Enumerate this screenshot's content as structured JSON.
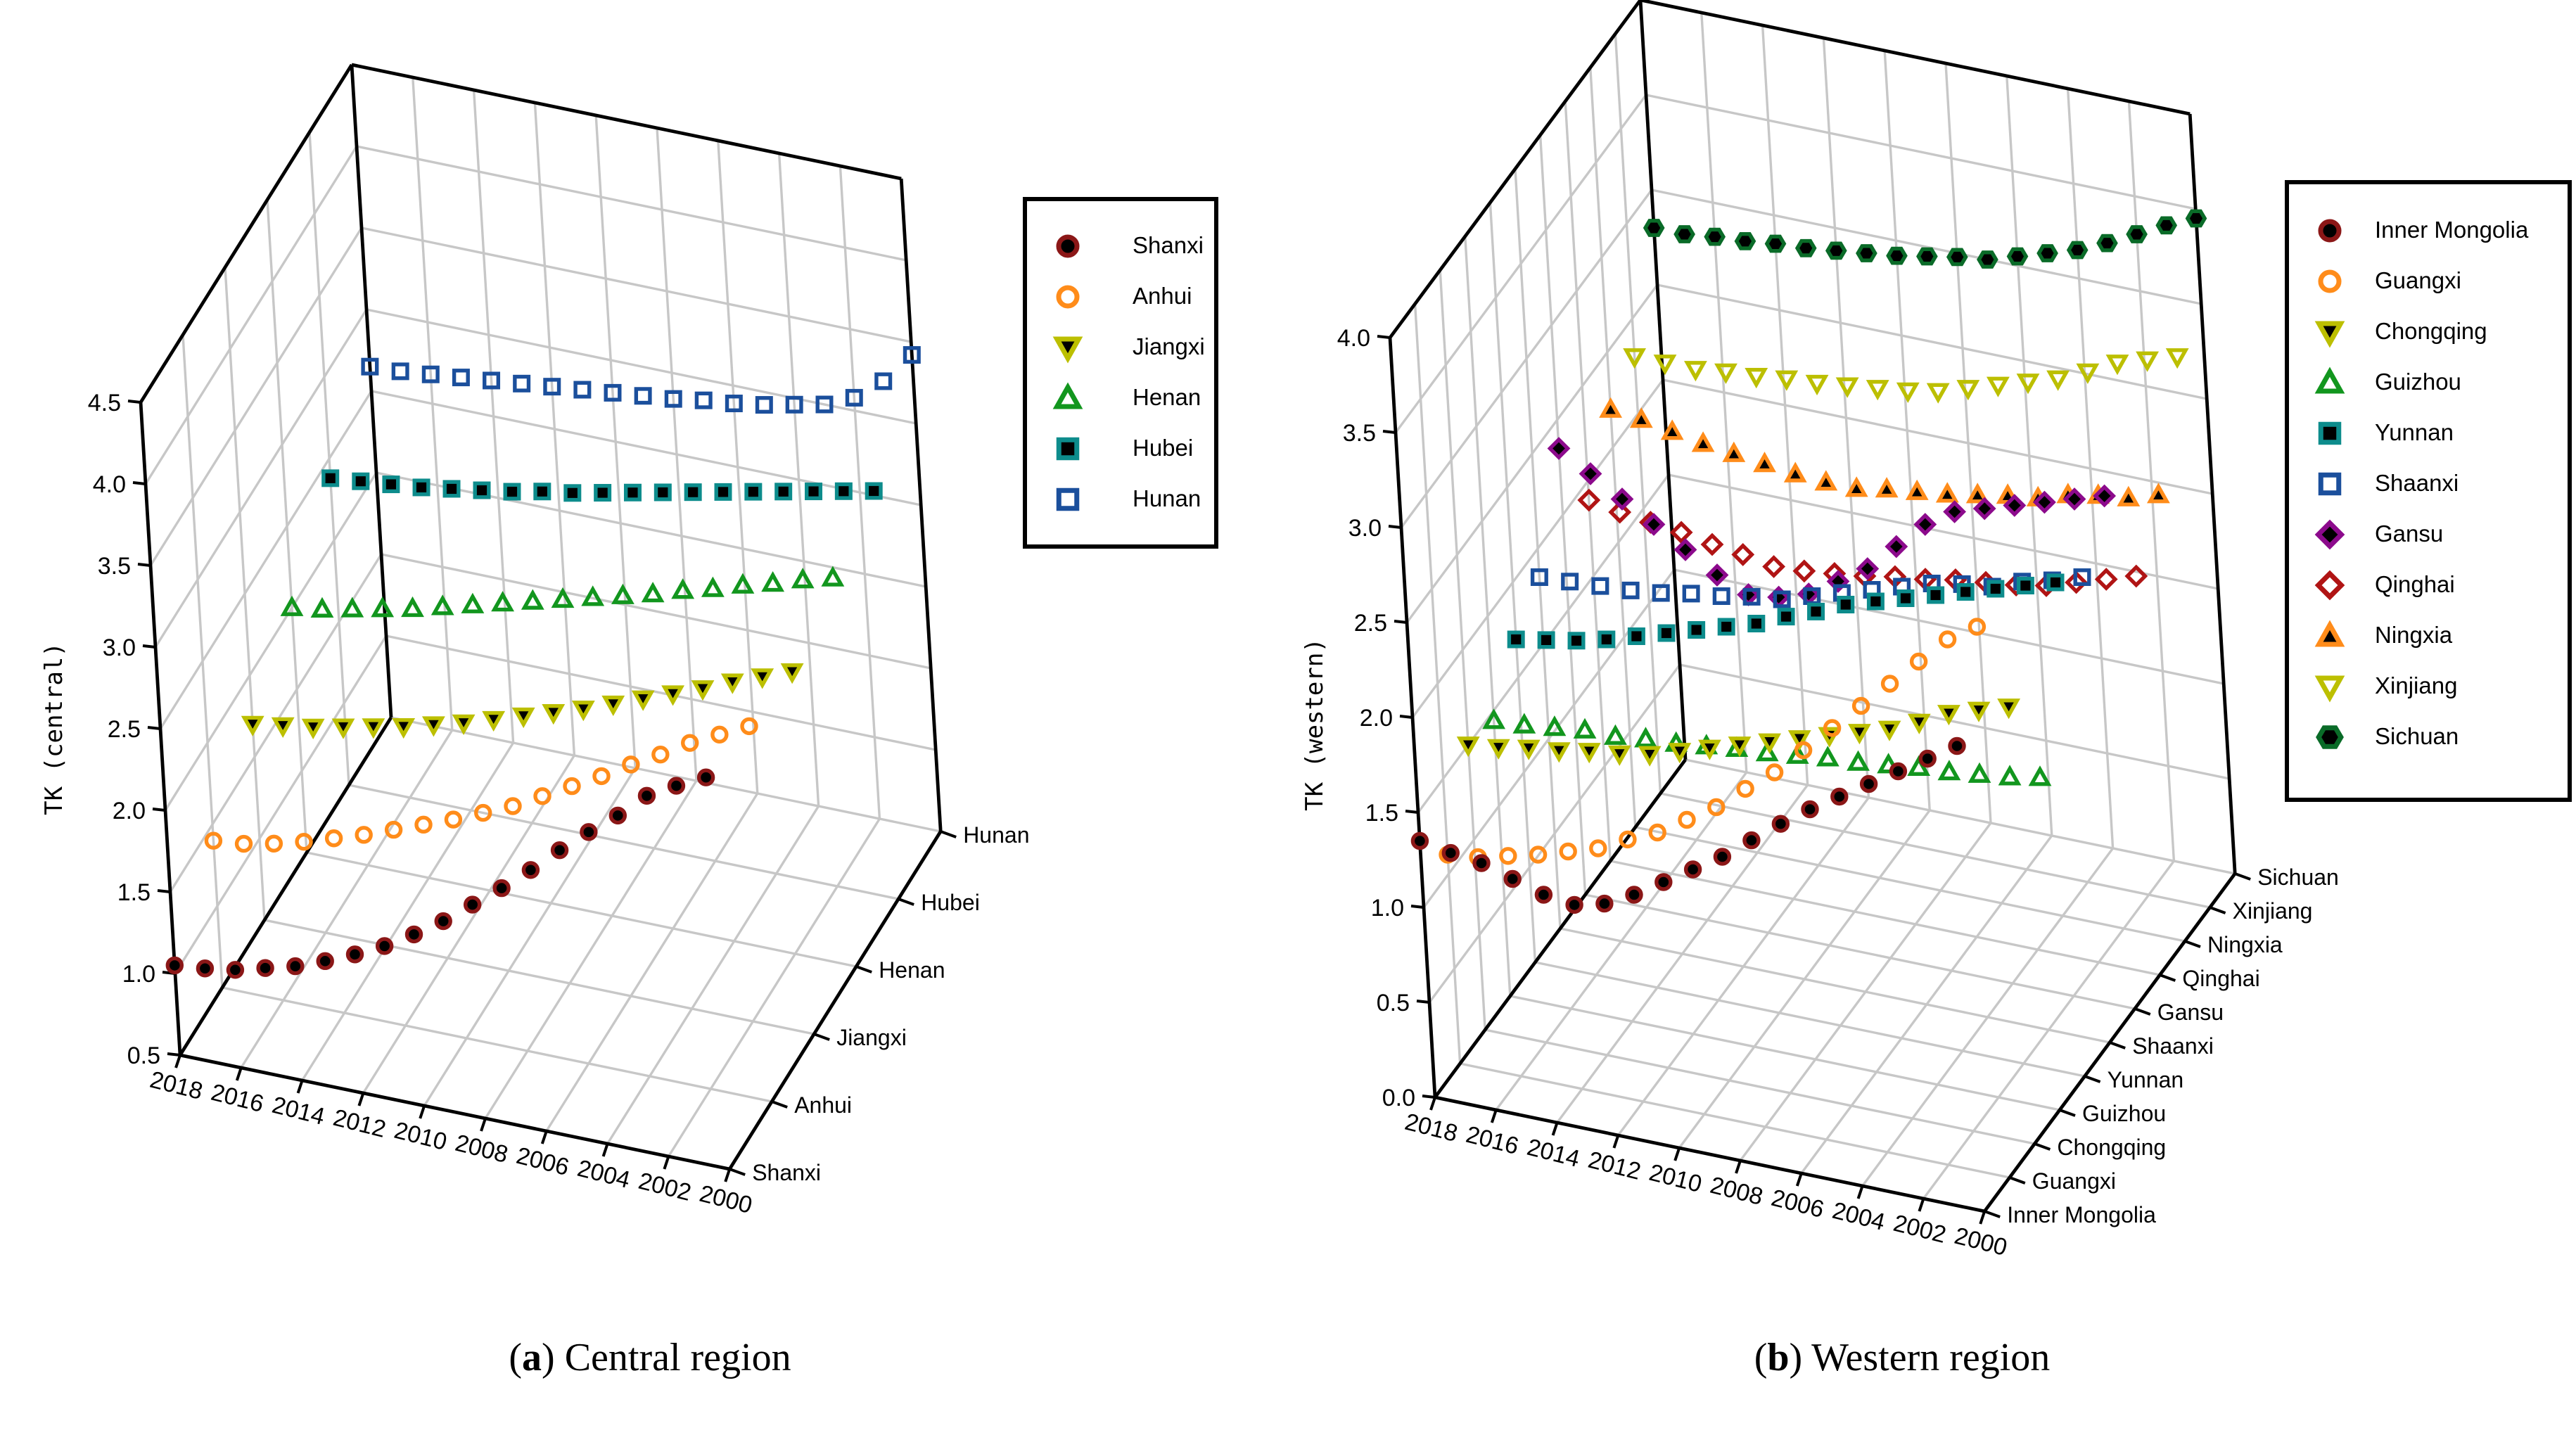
{
  "captions": {
    "a": {
      "open": "(",
      "letter": "a",
      "close": ")",
      "text": "Central region"
    },
    "b": {
      "open": "(",
      "letter": "b",
      "close": ")",
      "text": "Western region"
    }
  },
  "chart_data": [
    {
      "panel": "a",
      "type": "scatter",
      "projection": "3d",
      "region_label": "Central region",
      "zlabel": "TK (central)",
      "zlim": [
        0.5,
        4.5
      ],
      "ztick_step": 0.5,
      "ztick_labels": [
        "0.5",
        "1.0",
        "1.5",
        "2.0",
        "2.5",
        "3.0",
        "3.5",
        "4.0",
        "4.5"
      ],
      "years": [
        2000,
        2001,
        2002,
        2003,
        2004,
        2005,
        2006,
        2007,
        2008,
        2009,
        2010,
        2011,
        2012,
        2013,
        2014,
        2015,
        2016,
        2017,
        2018
      ],
      "year_ticks": [
        2018,
        2016,
        2014,
        2012,
        2010,
        2008,
        2006,
        2004,
        2002,
        2000
      ],
      "provinces_front_to_back": [
        "Shanxi",
        "Anhui",
        "Jiangxi",
        "Henan",
        "Hubei",
        "Hunan"
      ],
      "series": [
        {
          "name": "Shanxi",
          "marker": "circle",
          "marker_fill": "filled",
          "color": "#8b1717",
          "values": [
            2.9,
            2.81,
            2.71,
            2.55,
            2.41,
            2.26,
            2.1,
            1.95,
            1.81,
            1.67,
            1.55,
            1.44,
            1.35,
            1.27,
            1.2,
            1.15,
            1.1,
            1.07,
            1.05
          ]
        },
        {
          "name": "Anhui",
          "marker": "circle",
          "marker_fill": "open",
          "color": "#ff8c1a",
          "values": [
            2.8,
            2.71,
            2.62,
            2.51,
            2.41,
            2.3,
            2.2,
            2.1,
            2.0,
            1.92,
            1.84,
            1.77,
            1.7,
            1.63,
            1.57,
            1.51,
            1.46,
            1.42,
            1.4
          ]
        },
        {
          "name": "Jiangxi",
          "marker": "triangle-down",
          "marker_fill": "filled",
          "color": "#bcbf00",
          "values": [
            2.72,
            2.65,
            2.58,
            2.5,
            2.43,
            2.36,
            2.29,
            2.22,
            2.16,
            2.1,
            2.04,
            1.98,
            1.93,
            1.88,
            1.84,
            1.8,
            1.76,
            1.73,
            1.7
          ]
        },
        {
          "name": "Henan",
          "marker": "triangle-up",
          "marker_fill": "open",
          "color": "#12961e",
          "values": [
            2.88,
            2.83,
            2.77,
            2.72,
            2.66,
            2.61,
            2.55,
            2.5,
            2.45,
            2.4,
            2.35,
            2.3,
            2.25,
            2.2,
            2.15,
            2.11,
            2.07,
            2.03,
            2.0
          ]
        },
        {
          "name": "Hubei",
          "marker": "square",
          "marker_fill": "filled",
          "color": "#0d8c8c",
          "values": [
            3.0,
            2.96,
            2.92,
            2.88,
            2.84,
            2.8,
            2.76,
            2.72,
            2.68,
            2.64,
            2.6,
            2.57,
            2.53,
            2.5,
            2.47,
            2.44,
            2.42,
            2.4,
            2.38
          ]
        },
        {
          "name": "Hunan",
          "marker": "square",
          "marker_fill": "open",
          "color": "#1b4f9c",
          "values": [
            3.42,
            3.22,
            3.08,
            3.0,
            2.96,
            2.92,
            2.89,
            2.87,
            2.84,
            2.82,
            2.8,
            2.78,
            2.76,
            2.74,
            2.72,
            2.7,
            2.68,
            2.66,
            2.65
          ]
        }
      ]
    },
    {
      "panel": "b",
      "type": "scatter",
      "projection": "3d",
      "region_label": "Western region",
      "zlabel": "TK (western)",
      "zlim": [
        0.0,
        4.0
      ],
      "ztick_step": 0.5,
      "ztick_labels": [
        "0.0",
        "0.5",
        "1.0",
        "1.5",
        "2.0",
        "2.5",
        "3.0",
        "3.5",
        "4.0"
      ],
      "years": [
        2000,
        2001,
        2002,
        2003,
        2004,
        2005,
        2006,
        2007,
        2008,
        2009,
        2010,
        2011,
        2012,
        2013,
        2014,
        2015,
        2016,
        2017,
        2018
      ],
      "year_ticks": [
        2018,
        2016,
        2014,
        2012,
        2010,
        2008,
        2006,
        2004,
        2002,
        2000
      ],
      "provinces_front_to_back": [
        "Inner Mongolia",
        "Guangxi",
        "Chongqing",
        "Guizhou",
        "Yunnan",
        "Shaanxi",
        "Gansu",
        "Qinghai",
        "Ningxia",
        "Xinjiang",
        "Sichuan"
      ],
      "series": [
        {
          "name": "Inner Mongolia",
          "marker": "circle",
          "marker_fill": "filled",
          "color": "#8b1717",
          "values": [
            2.45,
            2.35,
            2.25,
            2.15,
            2.05,
            1.95,
            1.84,
            1.72,
            1.6,
            1.5,
            1.4,
            1.3,
            1.22,
            1.18,
            1.2,
            1.25,
            1.3,
            1.32,
            1.35
          ]
        },
        {
          "name": "Guangxi",
          "marker": "circle",
          "marker_fill": "open",
          "color": "#ff8c1a",
          "values": [
            2.9,
            2.8,
            2.65,
            2.5,
            2.35,
            2.2,
            2.05,
            1.9,
            1.78,
            1.65,
            1.55,
            1.45,
            1.38,
            1.3,
            1.25,
            1.2,
            1.16,
            1.12,
            1.1
          ]
        },
        {
          "name": "Chongqing",
          "marker": "triangle-down",
          "marker_fill": "filled",
          "color": "#bcbf00",
          "values": [
            2.3,
            2.25,
            2.2,
            2.12,
            2.05,
            2.0,
            1.95,
            1.9,
            1.85,
            1.8,
            1.75,
            1.7,
            1.65,
            1.62,
            1.6,
            1.57,
            1.55,
            1.52,
            1.5
          ]
        },
        {
          "name": "Guizhou",
          "marker": "triangle-up",
          "marker_fill": "open",
          "color": "#12961e",
          "values": [
            1.75,
            1.72,
            1.7,
            1.68,
            1.67,
            1.65,
            1.63,
            1.62,
            1.6,
            1.58,
            1.57,
            1.55,
            1.53,
            1.52,
            1.5,
            1.5,
            1.48,
            1.46,
            1.45
          ]
        },
        {
          "name": "Yunnan",
          "marker": "square",
          "marker_fill": "filled",
          "color": "#0d8c8c",
          "values": [
            2.6,
            2.55,
            2.5,
            2.45,
            2.4,
            2.35,
            2.3,
            2.25,
            2.18,
            2.12,
            2.05,
            2.0,
            1.95,
            1.9,
            1.85,
            1.8,
            1.76,
            1.73,
            1.7
          ]
        },
        {
          "name": "Shaanxi",
          "marker": "square",
          "marker_fill": "open",
          "color": "#1b4f9c",
          "values": [
            2.45,
            2.4,
            2.36,
            2.3,
            2.28,
            2.25,
            2.2,
            2.15,
            2.1,
            2.05,
            2.0,
            1.98,
            1.95,
            1.93,
            1.9,
            1.88,
            1.87,
            1.86,
            1.85
          ]
        },
        {
          "name": "Gansu",
          "marker": "diamond",
          "marker_fill": "filled",
          "color": "#8c0a8c",
          "values": [
            2.7,
            2.65,
            2.6,
            2.55,
            2.5,
            2.45,
            2.35,
            2.2,
            2.05,
            1.95,
            1.85,
            1.8,
            1.78,
            1.85,
            1.95,
            2.05,
            2.15,
            2.25,
            2.35
          ]
        },
        {
          "name": "Qinghai",
          "marker": "diamond",
          "marker_fill": "open",
          "color": "#b01414",
          "values": [
            2.1,
            2.05,
            2.0,
            1.95,
            1.92,
            1.9,
            1.88,
            1.85,
            1.83,
            1.8,
            1.78,
            1.76,
            1.75,
            1.78,
            1.8,
            1.83,
            1.85,
            1.87,
            1.9
          ]
        },
        {
          "name": "Ningxia",
          "marker": "triangle-up",
          "marker_fill": "filled",
          "color": "#ff8c1a",
          "values": [
            2.35,
            2.3,
            2.28,
            2.25,
            2.2,
            2.18,
            2.15,
            2.12,
            2.1,
            2.08,
            2.05,
            2.05,
            2.06,
            2.08,
            2.1,
            2.12,
            2.15,
            2.18,
            2.2
          ]
        },
        {
          "name": "Xinjiang",
          "marker": "triangle-down",
          "marker_fill": "open",
          "color": "#bcbf00",
          "values": [
            2.9,
            2.85,
            2.8,
            2.72,
            2.65,
            2.6,
            2.55,
            2.5,
            2.45,
            2.42,
            2.4,
            2.38,
            2.36,
            2.35,
            2.33,
            2.32,
            2.3,
            2.3,
            2.3
          ]
        },
        {
          "name": "Sichuan",
          "marker": "hexagon",
          "marker_fill": "filled",
          "color": "#0a6b28",
          "values": [
            3.45,
            3.38,
            3.3,
            3.22,
            3.15,
            3.1,
            3.05,
            3.0,
            2.98,
            2.95,
            2.92,
            2.9,
            2.88,
            2.86,
            2.85,
            2.83,
            2.82,
            2.8,
            2.8
          ]
        }
      ]
    }
  ]
}
